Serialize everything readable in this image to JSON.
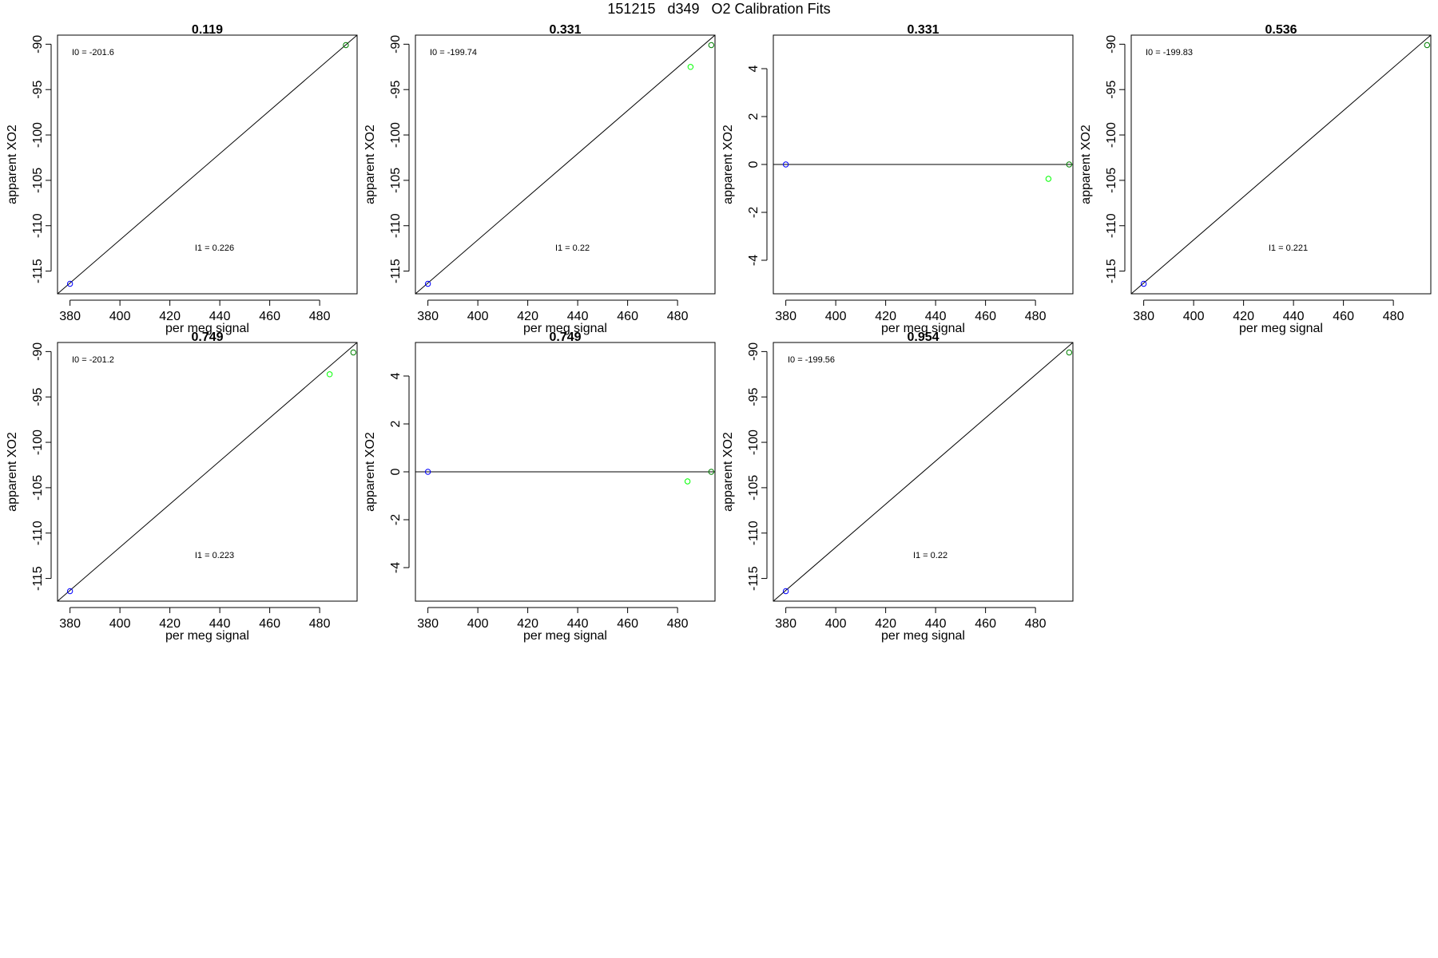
{
  "figure_title": "151215   d349   O2 Calibration Fits",
  "colors": {
    "reference_line": "#000000",
    "low_point": "#0000ff",
    "high_point": "#008000",
    "sample_point": "#00ff00"
  },
  "chart_data": [
    {
      "type": "scatter",
      "title": "0.119",
      "xlabel": "per meg signal",
      "ylabel": "apparent XO2",
      "xlim": [
        375,
        495
      ],
      "ylim": [
        -117.5,
        -89
      ],
      "xticks": [
        "380",
        "400",
        "420",
        "440",
        "460",
        "480"
      ],
      "yticks": [
        "-90",
        "-95",
        "-100",
        "-105",
        "-110",
        "-115"
      ],
      "series": [
        {
          "color": "blue",
          "points": [
            [
              380,
              -116.4
            ]
          ]
        },
        {
          "color": "green",
          "points": [
            [
              490.5,
              -90.1
            ]
          ]
        }
      ],
      "fit_line": {
        "kind": "diagonal"
      },
      "annotations": {
        "i0": "I0 =  -201.6",
        "i1": "I1 =  0.226"
      }
    },
    {
      "type": "scatter",
      "title": "0.331",
      "xlabel": "per meg signal",
      "ylabel": "apparent XO2",
      "xlim": [
        375,
        495
      ],
      "ylim": [
        -117.5,
        -89
      ],
      "xticks": [
        "380",
        "400",
        "420",
        "440",
        "460",
        "480"
      ],
      "yticks": [
        "-90",
        "-95",
        "-100",
        "-105",
        "-110",
        "-115"
      ],
      "series": [
        {
          "color": "blue",
          "points": [
            [
              380,
              -116.4
            ]
          ]
        },
        {
          "color": "lime",
          "points": [
            [
              485.2,
              -92.5
            ]
          ]
        },
        {
          "color": "green",
          "points": [
            [
              493.5,
              -90.1
            ]
          ]
        }
      ],
      "fit_line": {
        "kind": "diagonal"
      },
      "annotations": {
        "i0": "I0 =  -199.74",
        "i1": "I1 =  0.22"
      }
    },
    {
      "type": "scatter",
      "title": "0.331",
      "xlabel": "per meg signal",
      "ylabel": "apparent XO2",
      "xlim": [
        375,
        495
      ],
      "ylim": [
        -5.4,
        5.4
      ],
      "xticks": [
        "380",
        "400",
        "420",
        "440",
        "460",
        "480"
      ],
      "yticks": [
        "4",
        "2",
        "0",
        "-2",
        "-4"
      ],
      "series": [
        {
          "color": "blue",
          "points": [
            [
              380,
              0
            ]
          ]
        },
        {
          "color": "lime",
          "points": [
            [
              485.2,
              -0.6
            ]
          ]
        },
        {
          "color": "green",
          "points": [
            [
              493.5,
              0
            ]
          ]
        }
      ],
      "fit_line": {
        "kind": "zero"
      },
      "annotations": {}
    },
    {
      "type": "scatter",
      "title": "0.536",
      "xlabel": "per meg signal",
      "ylabel": "apparent XO2",
      "xlim": [
        375,
        495
      ],
      "ylim": [
        -117.5,
        -89
      ],
      "xticks": [
        "380",
        "400",
        "420",
        "440",
        "460",
        "480"
      ],
      "yticks": [
        "-90",
        "-95",
        "-100",
        "-105",
        "-110",
        "-115"
      ],
      "series": [
        {
          "color": "blue",
          "points": [
            [
              380,
              -116.4
            ]
          ]
        },
        {
          "color": "green",
          "points": [
            [
              493.5,
              -90.1
            ]
          ]
        }
      ],
      "fit_line": {
        "kind": "diagonal"
      },
      "annotations": {
        "i0": "I0 =  -199.83",
        "i1": "I1 =  0.221"
      }
    },
    {
      "type": "scatter",
      "title": "0.749",
      "xlabel": "per meg signal",
      "ylabel": "apparent XO2",
      "xlim": [
        375,
        495
      ],
      "ylim": [
        -117.5,
        -89
      ],
      "xticks": [
        "380",
        "400",
        "420",
        "440",
        "460",
        "480"
      ],
      "yticks": [
        "-90",
        "-95",
        "-100",
        "-105",
        "-110",
        "-115"
      ],
      "series": [
        {
          "color": "blue",
          "points": [
            [
              380,
              -116.4
            ]
          ]
        },
        {
          "color": "lime",
          "points": [
            [
              484,
              -92.5
            ]
          ]
        },
        {
          "color": "green",
          "points": [
            [
              493.5,
              -90.1
            ]
          ]
        }
      ],
      "fit_line": {
        "kind": "diagonal"
      },
      "annotations": {
        "i0": "I0 =  -201.2",
        "i1": "I1 =  0.223"
      }
    },
    {
      "type": "scatter",
      "title": "0.749",
      "xlabel": "per meg signal",
      "ylabel": "apparent XO2",
      "xlim": [
        375,
        495
      ],
      "ylim": [
        -5.4,
        5.4
      ],
      "xticks": [
        "380",
        "400",
        "420",
        "440",
        "460",
        "480"
      ],
      "yticks": [
        "4",
        "2",
        "0",
        "-2",
        "-4"
      ],
      "series": [
        {
          "color": "blue",
          "points": [
            [
              380,
              0
            ]
          ]
        },
        {
          "color": "lime",
          "points": [
            [
              484,
              -0.4
            ]
          ]
        },
        {
          "color": "green",
          "points": [
            [
              493.5,
              0
            ]
          ]
        }
      ],
      "fit_line": {
        "kind": "zero"
      },
      "annotations": {}
    },
    {
      "type": "scatter",
      "title": "0.954",
      "xlabel": "per meg signal",
      "ylabel": "apparent XO2",
      "xlim": [
        375,
        495
      ],
      "ylim": [
        -117.5,
        -89
      ],
      "xticks": [
        "380",
        "400",
        "420",
        "440",
        "460",
        "480"
      ],
      "yticks": [
        "-90",
        "-95",
        "-100",
        "-105",
        "-110",
        "-115"
      ],
      "series": [
        {
          "color": "blue",
          "points": [
            [
              380,
              -116.4
            ]
          ]
        },
        {
          "color": "green",
          "points": [
            [
              493.5,
              -90.1
            ]
          ]
        }
      ],
      "fit_line": {
        "kind": "diagonal"
      },
      "annotations": {
        "i0": "I0 =  -199.56",
        "i1": "I1 =  0.22"
      }
    }
  ]
}
